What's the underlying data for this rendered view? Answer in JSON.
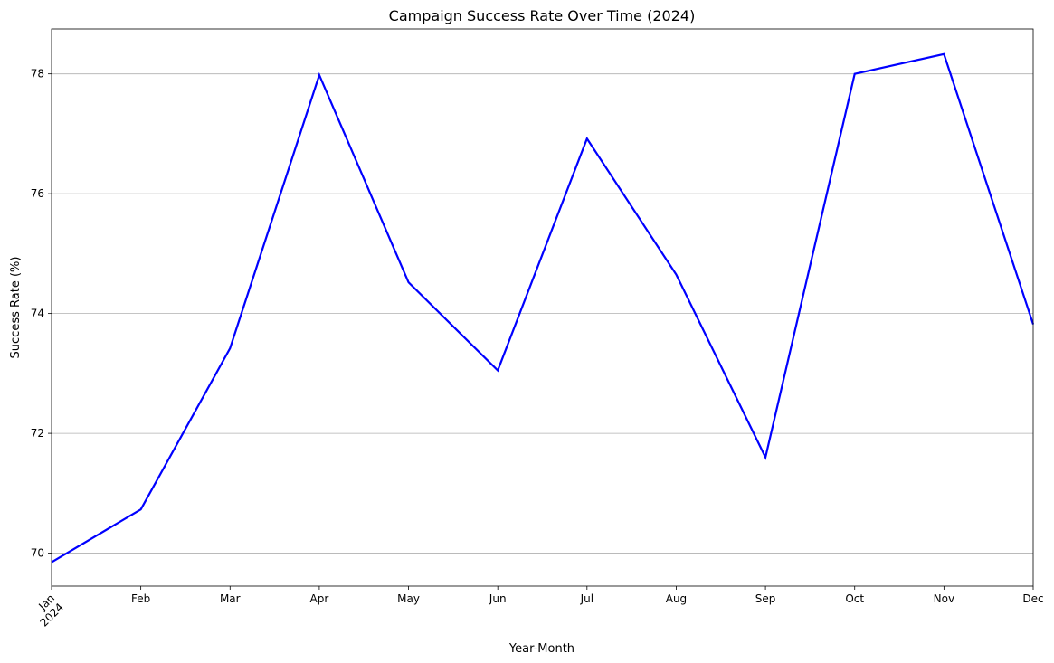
{
  "chart_data": {
    "type": "line",
    "title": "Campaign Success Rate Over Time (2024)",
    "xlabel": "Year-Month",
    "ylabel": "Success Rate (%)",
    "categories": [
      "Jan",
      "Feb",
      "Mar",
      "Apr",
      "May",
      "Jun",
      "Jul",
      "Aug",
      "Sep",
      "Oct",
      "Nov",
      "Dec"
    ],
    "year_label": "2024",
    "series": [
      {
        "values": [
          69.85,
          70.73,
          73.42,
          77.98,
          74.52,
          73.05,
          76.92,
          74.65,
          71.6,
          78.0,
          78.33,
          73.82
        ],
        "color": "#0000ff"
      }
    ],
    "yticks": [
      70,
      72,
      74,
      76,
      78
    ],
    "ylim": [
      69.45,
      78.75
    ],
    "grid": "y-axis only",
    "legend": "none"
  }
}
